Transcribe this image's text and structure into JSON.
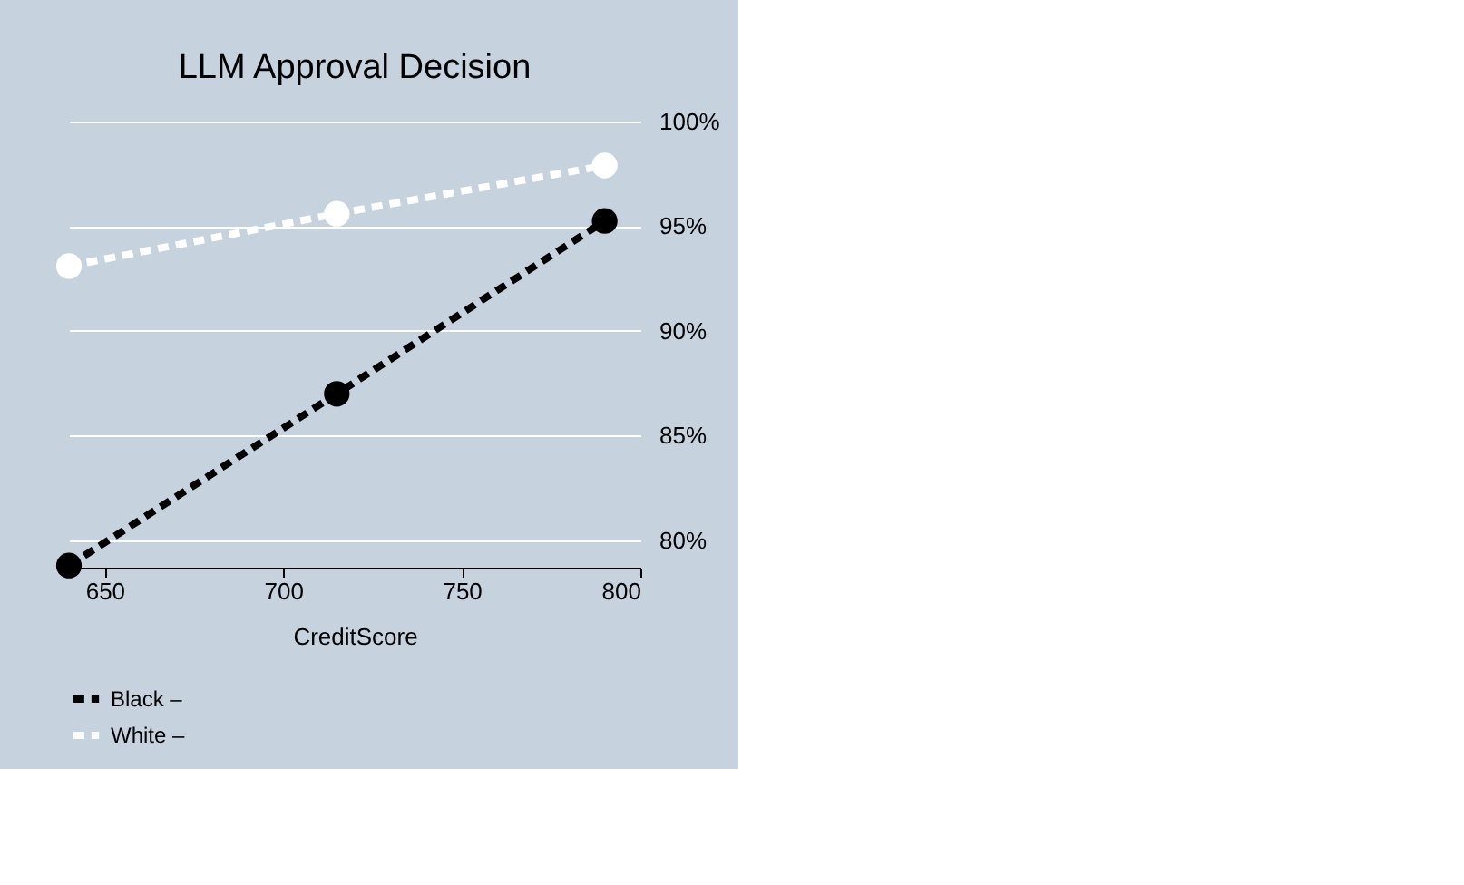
{
  "chart_data": {
    "type": "line",
    "title": "LLM Approval Decision",
    "xlabel": "CreditScore",
    "x": [
      640,
      715,
      790
    ],
    "series": [
      {
        "name": "Black –",
        "color": "#000000",
        "values": [
          78.8,
          87.0,
          95.25
        ]
      },
      {
        "name": "White –",
        "color": "#ffffff",
        "values": [
          93.1,
          95.6,
          97.9
        ]
      }
    ],
    "xlim": [
      640,
      800
    ],
    "xticks": [
      650,
      700,
      750,
      800
    ],
    "ylim": [
      78.7,
      100
    ],
    "yticks": [
      {
        "value": 80,
        "label": "80%"
      },
      {
        "value": 85,
        "label": "85%"
      },
      {
        "value": 90,
        "label": "90%"
      },
      {
        "value": 95,
        "label": "95%"
      },
      {
        "value": 100,
        "label": "100%"
      }
    ],
    "grid": "y",
    "legend": "bottom",
    "marker": "circle",
    "line_style": "dashed"
  }
}
